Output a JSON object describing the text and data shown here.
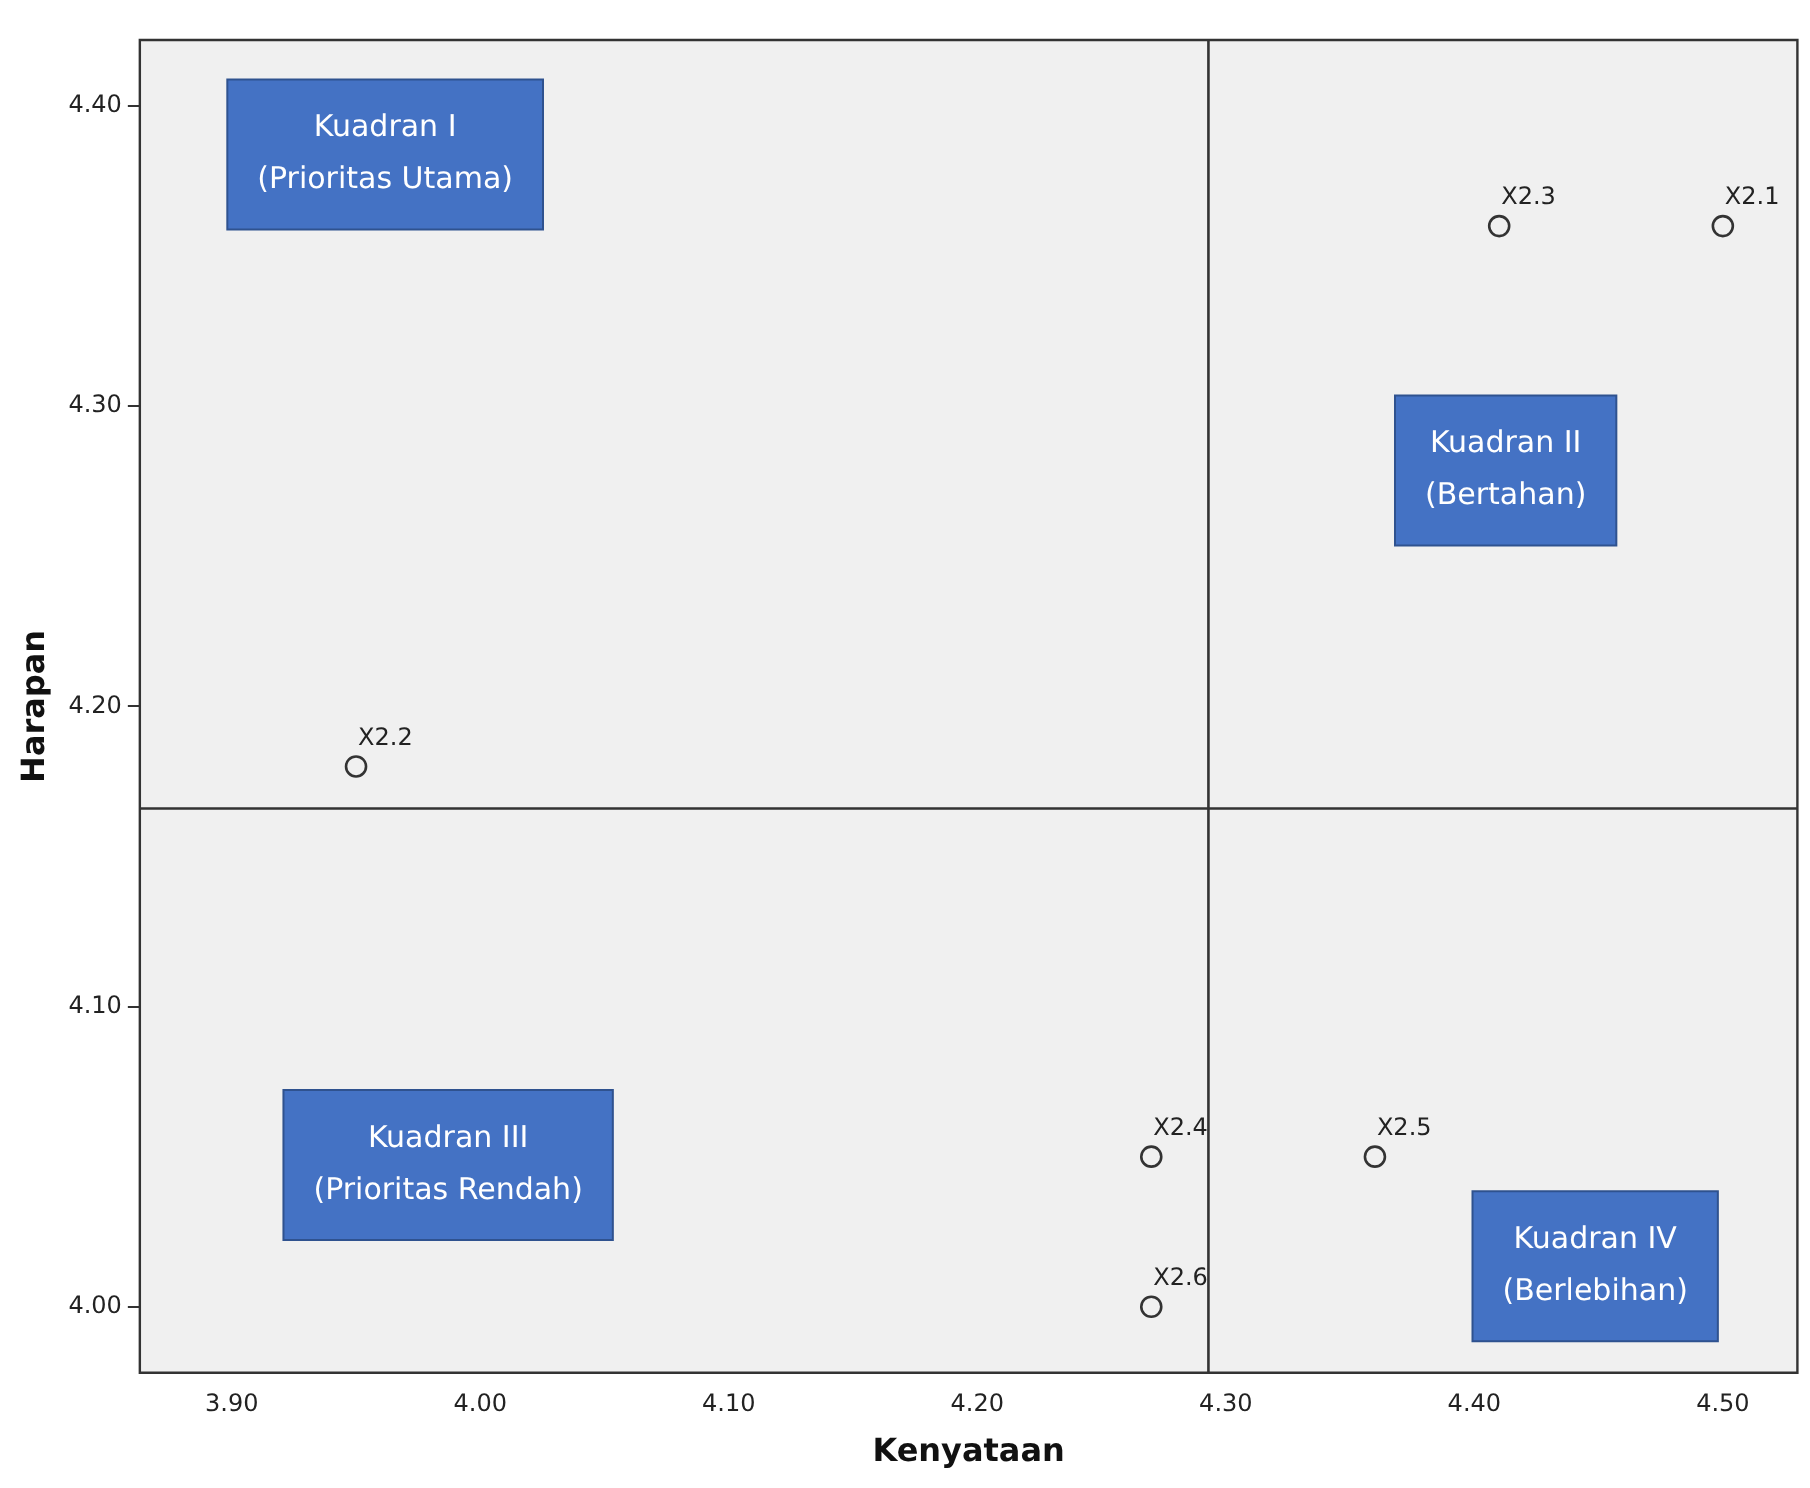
{
  "chart_data": {
    "type": "scatter",
    "xlabel": "Kenyataan",
    "ylabel": "Harapan",
    "x": [
      4.5,
      3.95,
      4.41,
      4.27,
      4.36,
      4.27
    ],
    "values": [
      4.36,
      4.18,
      4.36,
      4.05,
      4.05,
      4.0
    ],
    "color": "#333333",
    "marker": "circle",
    "grid": false,
    "legend": false,
    "xlim": [
      3.863,
      4.53
    ],
    "ylim": [
      3.978,
      4.422
    ],
    "xticks": [
      {
        "value": 3.9,
        "label": "3.90"
      },
      {
        "value": 4.0,
        "label": "4.00"
      },
      {
        "value": 4.1,
        "label": "4.10"
      },
      {
        "value": 4.2,
        "label": "4.20"
      },
      {
        "value": 4.3,
        "label": "4.30"
      },
      {
        "value": 4.4,
        "label": "4.40"
      },
      {
        "value": 4.5,
        "label": "4.50"
      }
    ],
    "yticks": [
      {
        "value": 4.0,
        "label": "4.00"
      },
      {
        "value": 4.1,
        "label": "4.10"
      },
      {
        "value": 4.2,
        "label": "4.20"
      },
      {
        "value": 4.3,
        "label": "4.30"
      },
      {
        "value": 4.4,
        "label": "4.40"
      }
    ],
    "ref_lines": [
      {
        "axis": "x",
        "value": 4.293,
        "color": "#333333"
      },
      {
        "axis": "y",
        "value": 4.166,
        "color": "#333333"
      }
    ],
    "annotations": [
      {
        "text": "X2.1",
        "x": 4.5,
        "y": 4.36
      },
      {
        "text": "X2.2",
        "x": 3.95,
        "y": 4.18
      },
      {
        "text": "X2.3",
        "x": 4.41,
        "y": 4.36
      },
      {
        "text": "X2.4",
        "x": 4.27,
        "y": 4.05
      },
      {
        "text": "X2.5",
        "x": 4.36,
        "y": 4.05
      },
      {
        "text": "X2.6",
        "x": 4.27,
        "y": 4.0
      },
      "Kuadran I\n(Prioritas Utama)",
      "Kuadran II\n(Bertahan)",
      "Kuadran III\n(Prioritas Rendah)",
      "Kuadran IV\n(Berlebihan)"
    ]
  }
}
